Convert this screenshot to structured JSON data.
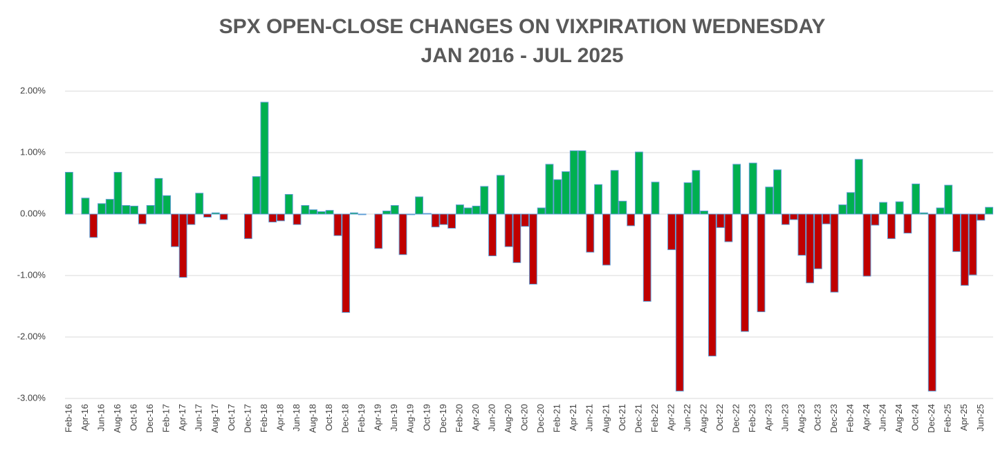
{
  "chart_data": {
    "type": "bar",
    "title": "SPX OPEN-CLOSE CHANGES ON VIXPIRATION WEDNESDAY",
    "subtitle": "JAN 2016 - JUL 2025",
    "categories": [
      "Feb-16",
      null,
      "Apr-16",
      null,
      "Jun-16",
      null,
      "Aug-16",
      null,
      "Oct-16",
      null,
      "Dec-16",
      null,
      "Feb-17",
      null,
      "Apr-17",
      null,
      "Jun-17",
      null,
      "Aug-17",
      null,
      "Oct-17",
      null,
      "Dec-17",
      null,
      "Feb-18",
      null,
      "Apr-18",
      null,
      "Jun-18",
      null,
      "Aug-18",
      null,
      "Oct-18",
      null,
      "Dec-18",
      null,
      "Feb-19",
      null,
      "Apr-19",
      null,
      "Jun-19",
      null,
      "Aug-19",
      null,
      "Oct-19",
      null,
      "Dec-19",
      null,
      "Feb-20",
      null,
      "Apr-20",
      null,
      "Jun-20",
      null,
      "Aug-20",
      null,
      "Oct-20",
      null,
      "Dec-20",
      null,
      "Feb-21",
      null,
      "Apr-21",
      null,
      "Jun-21",
      null,
      "Aug-21",
      null,
      "Oct-21",
      null,
      "Dec-21",
      null,
      "Feb-22",
      null,
      "Apr-22",
      null,
      "Jun-22",
      null,
      "Aug-22",
      null,
      "Oct-22",
      null,
      "Dec-22",
      null,
      "Feb-23",
      null,
      "Apr-23",
      null,
      "Jun-23",
      null,
      "Aug-23",
      null,
      "Oct-23",
      null,
      "Dec-23",
      null,
      "Feb-24",
      null,
      "Apr-24",
      null,
      "Jun-24",
      null,
      "Aug-24",
      null,
      "Oct-24",
      null,
      "Dec-24",
      null,
      "Feb-25",
      null,
      "Apr-25",
      null,
      "Jun-25",
      null
    ],
    "values": [
      0.68,
      0,
      0.26,
      -0.38,
      0.17,
      0.24,
      0.68,
      0.14,
      0.13,
      -0.16,
      0.14,
      0.58,
      0.3,
      -0.53,
      -1.03,
      -0.17,
      0.34,
      -0.05,
      0.02,
      -0.09,
      0,
      0,
      -0.4,
      0.61,
      1.82,
      -0.13,
      -0.11,
      0.32,
      -0.17,
      0.14,
      0.07,
      0.04,
      0.06,
      -0.35,
      -1.6,
      0.02,
      -0.01,
      0,
      -0.56,
      0.05,
      0.14,
      -0.66,
      -0.01,
      0.28,
      0.01,
      -0.21,
      -0.17,
      -0.23,
      0.15,
      0.1,
      0.13,
      0.45,
      -0.68,
      0.63,
      -0.53,
      -0.79,
      -0.2,
      -1.14,
      0.1,
      0.81,
      0.56,
      0.69,
      1.03,
      1.03,
      -0.62,
      0.48,
      -0.83,
      0.71,
      0.21,
      -0.19,
      1.01,
      -1.42,
      0.52,
      0,
      -0.58,
      -2.88,
      0.51,
      0.71,
      0.05,
      -2.31,
      -0.22,
      -0.45,
      0.81,
      -1.91,
      0.83,
      -1.59,
      0.44,
      0.72,
      -0.17,
      -0.09,
      -0.67,
      -1.12,
      -0.89,
      -0.16,
      -1.27,
      0.15,
      0.35,
      0.89,
      -1.01,
      -0.18,
      0.19,
      -0.4,
      0.2,
      -0.31,
      0.49,
      0.02,
      -2.88,
      0.1,
      0.47,
      -0.61,
      -1.16,
      -0.99,
      -0.1,
      0.11
    ],
    "color": "#00b050",
    "negative_color": "#c00000",
    "edge_color": "#5b9bd5",
    "ylim": [
      -3,
      2
    ],
    "yticks": [
      {
        "value": -3,
        "label": "-3.00%"
      },
      {
        "value": -2,
        "label": "-2.00%"
      },
      {
        "value": -1,
        "label": "-1.00%"
      },
      {
        "value": 0,
        "label": "0.00%"
      },
      {
        "value": 1,
        "label": "1.00%"
      },
      {
        "value": 2,
        "label": "2.00%"
      }
    ],
    "grid": true
  }
}
